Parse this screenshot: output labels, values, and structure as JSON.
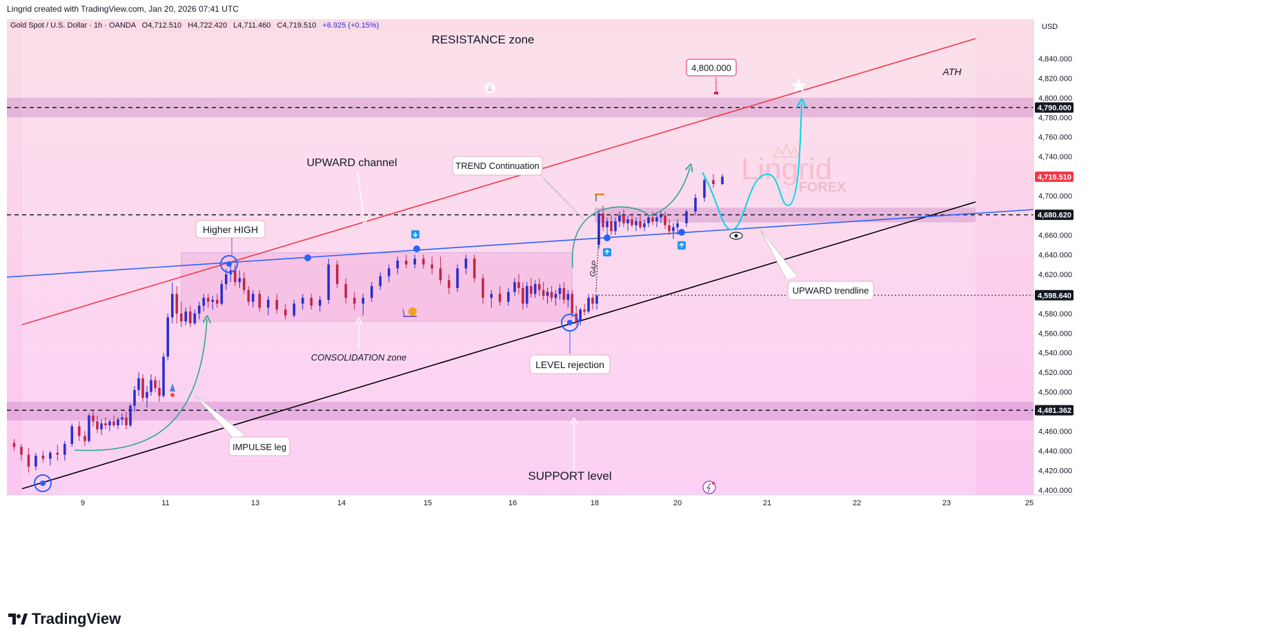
{
  "header": {
    "credit": "Lingrid created with TradingView.com, Jan 20, 2026 07:41 UTC"
  },
  "chart_data": {
    "type": "candlestick",
    "symbol_line": {
      "name": "Gold Spot / U.S. Dollar · 1h · OANDA",
      "open": "O4,712.510",
      "high": "H4,722.420",
      "low": "L4,711.460",
      "close": "C4,719.510",
      "change": "+6.925 (+0.15%)"
    },
    "currency": "USD",
    "y_range": [
      4395,
      4880
    ],
    "y_ticks": [
      "4,840.000",
      "4,820.000",
      "4,800.000",
      "4,780.000",
      "4,760.000",
      "4,740.000",
      "4,720.000",
      "4,700.000",
      "4,680.000",
      "4,660.000",
      "4,640.000",
      "4,620.000",
      "4,600.000",
      "4,580.000",
      "4,560.000",
      "4,540.000",
      "4,520.000",
      "4,500.000",
      "4,480.000",
      "4,460.000",
      "4,440.000",
      "4,420.000",
      "4,400.000"
    ],
    "y_tick_values": [
      4840,
      4820,
      4800,
      4780,
      4760,
      4740,
      4720,
      4700,
      4680,
      4660,
      4640,
      4620,
      4600,
      4580,
      4560,
      4540,
      4520,
      4500,
      4480,
      4460,
      4440,
      4420,
      4400
    ],
    "x_ticks": [
      {
        "label": "9",
        "day": 9
      },
      {
        "label": "11",
        "day": 11
      },
      {
        "label": "13",
        "day": 13
      },
      {
        "label": "14",
        "day": 14
      },
      {
        "label": "15",
        "day": 15
      },
      {
        "label": "16",
        "day": 16
      },
      {
        "label": "18",
        "day": 18
      },
      {
        "label": "20",
        "day": 20
      },
      {
        "label": "21",
        "day": 21
      },
      {
        "label": "22",
        "day": 22
      },
      {
        "label": "23",
        "day": 23
      },
      {
        "label": "25",
        "day": 25
      }
    ],
    "price_tags": [
      {
        "label": "4,790.000",
        "value": 4790,
        "color": "#131722"
      },
      {
        "label": "4,719.510",
        "value": 4719.51,
        "color": "#f23645"
      },
      {
        "label": "4,680.620",
        "value": 4680.62,
        "color": "#131722"
      },
      {
        "label": "4,598.640",
        "value": 4598.64,
        "color": "#131722"
      },
      {
        "label": "4,481.362",
        "value": 4481.362,
        "color": "#131722"
      }
    ],
    "candles": [
      {
        "day": 8.05,
        "o": 4448,
        "h": 4452,
        "l": 4440,
        "c": 4444
      },
      {
        "day": 8.15,
        "o": 4444,
        "h": 4447,
        "l": 4430,
        "c": 4436
      },
      {
        "day": 8.25,
        "o": 4436,
        "h": 4443,
        "l": 4418,
        "c": 4424
      },
      {
        "day": 8.35,
        "o": 4424,
        "h": 4438,
        "l": 4420,
        "c": 4435
      },
      {
        "day": 8.45,
        "o": 4435,
        "h": 4440,
        "l": 4428,
        "c": 4432
      },
      {
        "day": 8.55,
        "o": 4432,
        "h": 4440,
        "l": 4425,
        "c": 4438
      },
      {
        "day": 8.65,
        "o": 4438,
        "h": 4446,
        "l": 4430,
        "c": 4436
      },
      {
        "day": 8.75,
        "o": 4436,
        "h": 4450,
        "l": 4430,
        "c": 4447
      },
      {
        "day": 8.85,
        "o": 4447,
        "h": 4468,
        "l": 4444,
        "c": 4465
      },
      {
        "day": 8.95,
        "o": 4465,
        "h": 4470,
        "l": 4450,
        "c": 4455
      },
      {
        "day": 9.05,
        "o": 4455,
        "h": 4460,
        "l": 4445,
        "c": 4450
      },
      {
        "day": 9.15,
        "o": 4450,
        "h": 4478,
        "l": 4448,
        "c": 4476
      },
      {
        "day": 9.25,
        "o": 4476,
        "h": 4482,
        "l": 4465,
        "c": 4470
      },
      {
        "day": 9.35,
        "o": 4470,
        "h": 4476,
        "l": 4458,
        "c": 4462
      },
      {
        "day": 9.45,
        "o": 4462,
        "h": 4472,
        "l": 4456,
        "c": 4468
      },
      {
        "day": 9.55,
        "o": 4468,
        "h": 4474,
        "l": 4462,
        "c": 4466
      },
      {
        "day": 9.65,
        "o": 4466,
        "h": 4472,
        "l": 4460,
        "c": 4470
      },
      {
        "day": 9.75,
        "o": 4470,
        "h": 4476,
        "l": 4464,
        "c": 4466
      },
      {
        "day": 9.85,
        "o": 4466,
        "h": 4474,
        "l": 4462,
        "c": 4472
      },
      {
        "day": 9.95,
        "o": 4472,
        "h": 4478,
        "l": 4466,
        "c": 4474
      },
      {
        "day": 10.05,
        "o": 4474,
        "h": 4480,
        "l": 4462,
        "c": 4466
      },
      {
        "day": 10.15,
        "o": 4466,
        "h": 4488,
        "l": 4464,
        "c": 4486
      },
      {
        "day": 10.25,
        "o": 4486,
        "h": 4506,
        "l": 4480,
        "c": 4502
      },
      {
        "day": 10.35,
        "o": 4502,
        "h": 4520,
        "l": 4496,
        "c": 4514
      },
      {
        "day": 10.45,
        "o": 4514,
        "h": 4518,
        "l": 4490,
        "c": 4494
      },
      {
        "day": 10.55,
        "o": 4494,
        "h": 4506,
        "l": 4484,
        "c": 4500
      },
      {
        "day": 10.65,
        "o": 4500,
        "h": 4518,
        "l": 4496,
        "c": 4512
      },
      {
        "day": 10.75,
        "o": 4512,
        "h": 4516,
        "l": 4500,
        "c": 4504
      },
      {
        "day": 10.85,
        "o": 4504,
        "h": 4512,
        "l": 4490,
        "c": 4496
      },
      {
        "day": 10.95,
        "o": 4496,
        "h": 4540,
        "l": 4494,
        "c": 4536
      },
      {
        "day": 11.05,
        "o": 4536,
        "h": 4580,
        "l": 4532,
        "c": 4576
      },
      {
        "day": 11.15,
        "o": 4576,
        "h": 4612,
        "l": 4570,
        "c": 4600
      },
      {
        "day": 11.25,
        "o": 4600,
        "h": 4608,
        "l": 4570,
        "c": 4580
      },
      {
        "day": 11.35,
        "o": 4580,
        "h": 4592,
        "l": 4566,
        "c": 4572
      },
      {
        "day": 11.45,
        "o": 4572,
        "h": 4586,
        "l": 4568,
        "c": 4582
      },
      {
        "day": 11.55,
        "o": 4582,
        "h": 4588,
        "l": 4566,
        "c": 4570
      },
      {
        "day": 11.65,
        "o": 4570,
        "h": 4584,
        "l": 4568,
        "c": 4580
      },
      {
        "day": 11.75,
        "o": 4580,
        "h": 4592,
        "l": 4574,
        "c": 4588
      },
      {
        "day": 11.85,
        "o": 4588,
        "h": 4600,
        "l": 4582,
        "c": 4596
      },
      {
        "day": 11.95,
        "o": 4596,
        "h": 4600,
        "l": 4586,
        "c": 4592
      },
      {
        "day": 12.05,
        "o": 4592,
        "h": 4598,
        "l": 4584,
        "c": 4594
      },
      {
        "day": 12.15,
        "o": 4594,
        "h": 4600,
        "l": 4586,
        "c": 4590
      },
      {
        "day": 12.25,
        "o": 4590,
        "h": 4614,
        "l": 4588,
        "c": 4610
      },
      {
        "day": 12.35,
        "o": 4610,
        "h": 4626,
        "l": 4604,
        "c": 4620
      },
      {
        "day": 12.45,
        "o": 4620,
        "h": 4630,
        "l": 4612,
        "c": 4624
      },
      {
        "day": 12.55,
        "o": 4624,
        "h": 4630,
        "l": 4608,
        "c": 4612
      },
      {
        "day": 12.65,
        "o": 4612,
        "h": 4624,
        "l": 4606,
        "c": 4616
      },
      {
        "day": 12.75,
        "o": 4616,
        "h": 4622,
        "l": 4600,
        "c": 4604
      },
      {
        "day": 12.85,
        "o": 4604,
        "h": 4608,
        "l": 4588,
        "c": 4592
      },
      {
        "day": 12.95,
        "o": 4592,
        "h": 4604,
        "l": 4586,
        "c": 4600
      },
      {
        "day": 13.05,
        "o": 4600,
        "h": 4604,
        "l": 4582,
        "c": 4586
      },
      {
        "day": 13.15,
        "o": 4586,
        "h": 4598,
        "l": 4578,
        "c": 4594
      },
      {
        "day": 13.25,
        "o": 4594,
        "h": 4600,
        "l": 4580,
        "c": 4584
      },
      {
        "day": 13.35,
        "o": 4584,
        "h": 4590,
        "l": 4574,
        "c": 4578
      },
      {
        "day": 13.45,
        "o": 4578,
        "h": 4594,
        "l": 4576,
        "c": 4590
      },
      {
        "day": 13.55,
        "o": 4590,
        "h": 4600,
        "l": 4584,
        "c": 4596
      },
      {
        "day": 13.65,
        "o": 4596,
        "h": 4600,
        "l": 4584,
        "c": 4588
      },
      {
        "day": 13.75,
        "o": 4588,
        "h": 4598,
        "l": 4582,
        "c": 4594
      },
      {
        "day": 13.85,
        "o": 4594,
        "h": 4636,
        "l": 4590,
        "c": 4630
      },
      {
        "day": 13.95,
        "o": 4630,
        "h": 4634,
        "l": 4606,
        "c": 4610
      },
      {
        "day": 14.05,
        "o": 4610,
        "h": 4616,
        "l": 4590,
        "c": 4596
      },
      {
        "day": 14.15,
        "o": 4596,
        "h": 4602,
        "l": 4584,
        "c": 4590
      },
      {
        "day": 14.25,
        "o": 4590,
        "h": 4600,
        "l": 4578,
        "c": 4596
      },
      {
        "day": 14.35,
        "o": 4596,
        "h": 4612,
        "l": 4592,
        "c": 4608
      },
      {
        "day": 14.45,
        "o": 4608,
        "h": 4622,
        "l": 4604,
        "c": 4618
      },
      {
        "day": 14.55,
        "o": 4618,
        "h": 4630,
        "l": 4612,
        "c": 4626
      },
      {
        "day": 14.65,
        "o": 4626,
        "h": 4638,
        "l": 4620,
        "c": 4634
      },
      {
        "day": 14.75,
        "o": 4634,
        "h": 4640,
        "l": 4626,
        "c": 4630
      },
      {
        "day": 14.85,
        "o": 4630,
        "h": 4640,
        "l": 4626,
        "c": 4636
      },
      {
        "day": 14.95,
        "o": 4636,
        "h": 4640,
        "l": 4626,
        "c": 4630
      },
      {
        "day": 15.05,
        "o": 4630,
        "h": 4638,
        "l": 4620,
        "c": 4626
      },
      {
        "day": 15.15,
        "o": 4626,
        "h": 4638,
        "l": 4610,
        "c": 4614
      },
      {
        "day": 15.25,
        "o": 4614,
        "h": 4620,
        "l": 4600,
        "c": 4606
      },
      {
        "day": 15.35,
        "o": 4606,
        "h": 4630,
        "l": 4602,
        "c": 4626
      },
      {
        "day": 15.45,
        "o": 4626,
        "h": 4640,
        "l": 4620,
        "c": 4636
      },
      {
        "day": 15.55,
        "o": 4636,
        "h": 4640,
        "l": 4612,
        "c": 4616
      },
      {
        "day": 15.65,
        "o": 4616,
        "h": 4620,
        "l": 4590,
        "c": 4596
      },
      {
        "day": 15.75,
        "o": 4596,
        "h": 4604,
        "l": 4586,
        "c": 4600
      },
      {
        "day": 15.85,
        "o": 4600,
        "h": 4608,
        "l": 4588,
        "c": 4592
      },
      {
        "day": 15.95,
        "o": 4592,
        "h": 4606,
        "l": 4588,
        "c": 4602
      },
      {
        "day": 16.05,
        "o": 4602,
        "h": 4616,
        "l": 4598,
        "c": 4612
      },
      {
        "day": 16.15,
        "o": 4612,
        "h": 4620,
        "l": 4600,
        "c": 4606
      },
      {
        "day": 16.25,
        "o": 4606,
        "h": 4612,
        "l": 4584,
        "c": 4590
      },
      {
        "day": 16.35,
        "o": 4590,
        "h": 4612,
        "l": 4586,
        "c": 4608
      },
      {
        "day": 16.45,
        "o": 4608,
        "h": 4616,
        "l": 4596,
        "c": 4600
      },
      {
        "day": 16.55,
        "o": 4600,
        "h": 4614,
        "l": 4596,
        "c": 4610
      },
      {
        "day": 16.65,
        "o": 4610,
        "h": 4616,
        "l": 4598,
        "c": 4604
      },
      {
        "day": 16.75,
        "o": 4604,
        "h": 4612,
        "l": 4594,
        "c": 4598
      },
      {
        "day": 16.85,
        "o": 4598,
        "h": 4606,
        "l": 4590,
        "c": 4602
      },
      {
        "day": 16.95,
        "o": 4602,
        "h": 4608,
        "l": 4592,
        "c": 4596
      },
      {
        "day": 17.05,
        "o": 4596,
        "h": 4604,
        "l": 4588,
        "c": 4600
      },
      {
        "day": 17.15,
        "o": 4600,
        "h": 4610,
        "l": 4594,
        "c": 4606
      },
      {
        "day": 17.25,
        "o": 4606,
        "h": 4612,
        "l": 4590,
        "c": 4594
      },
      {
        "day": 17.35,
        "o": 4594,
        "h": 4604,
        "l": 4586,
        "c": 4600
      },
      {
        "day": 17.45,
        "o": 4600,
        "h": 4604,
        "l": 4576,
        "c": 4580
      },
      {
        "day": 17.55,
        "o": 4580,
        "h": 4588,
        "l": 4568,
        "c": 4572
      },
      {
        "day": 17.65,
        "o": 4572,
        "h": 4586,
        "l": 4568,
        "c": 4584
      },
      {
        "day": 17.75,
        "o": 4584,
        "h": 4590,
        "l": 4578,
        "c": 4582
      },
      {
        "day": 17.85,
        "o": 4582,
        "h": 4600,
        "l": 4580,
        "c": 4596
      },
      {
        "day": 17.95,
        "o": 4596,
        "h": 4600,
        "l": 4584,
        "c": 4590
      },
      {
        "day": 18.05,
        "o": 4590,
        "h": 4600,
        "l": 4584,
        "c": 4598
      },
      {
        "day": 18.1,
        "o": 4650,
        "h": 4686,
        "l": 4646,
        "c": 4682
      },
      {
        "day": 18.2,
        "o": 4682,
        "h": 4690,
        "l": 4664,
        "c": 4668
      },
      {
        "day": 18.3,
        "o": 4668,
        "h": 4678,
        "l": 4656,
        "c": 4674
      },
      {
        "day": 18.4,
        "o": 4674,
        "h": 4680,
        "l": 4660,
        "c": 4664
      },
      {
        "day": 18.5,
        "o": 4664,
        "h": 4678,
        "l": 4660,
        "c": 4674
      },
      {
        "day": 18.6,
        "o": 4674,
        "h": 4684,
        "l": 4668,
        "c": 4680
      },
      {
        "day": 18.7,
        "o": 4680,
        "h": 4686,
        "l": 4668,
        "c": 4672
      },
      {
        "day": 18.8,
        "o": 4672,
        "h": 4680,
        "l": 4664,
        "c": 4676
      },
      {
        "day": 18.9,
        "o": 4676,
        "h": 4682,
        "l": 4668,
        "c": 4670
      },
      {
        "day": 19.0,
        "o": 4670,
        "h": 4678,
        "l": 4664,
        "c": 4674
      },
      {
        "day": 19.1,
        "o": 4674,
        "h": 4680,
        "l": 4666,
        "c": 4668
      },
      {
        "day": 19.2,
        "o": 4668,
        "h": 4676,
        "l": 4664,
        "c": 4672
      },
      {
        "day": 19.3,
        "o": 4672,
        "h": 4680,
        "l": 4668,
        "c": 4678
      },
      {
        "day": 19.4,
        "o": 4678,
        "h": 4684,
        "l": 4670,
        "c": 4674
      },
      {
        "day": 19.5,
        "o": 4674,
        "h": 4682,
        "l": 4668,
        "c": 4678
      },
      {
        "day": 19.6,
        "o": 4678,
        "h": 4684,
        "l": 4672,
        "c": 4680
      },
      {
        "day": 19.7,
        "o": 4680,
        "h": 4684,
        "l": 4666,
        "c": 4670
      },
      {
        "day": 19.8,
        "o": 4670,
        "h": 4676,
        "l": 4660,
        "c": 4664
      },
      {
        "day": 19.9,
        "o": 4664,
        "h": 4672,
        "l": 4656,
        "c": 4668
      },
      {
        "day": 20.0,
        "o": 4668,
        "h": 4676,
        "l": 4660,
        "c": 4672
      },
      {
        "day": 20.1,
        "o": 4672,
        "h": 4686,
        "l": 4668,
        "c": 4684
      },
      {
        "day": 20.2,
        "o": 4684,
        "h": 4702,
        "l": 4680,
        "c": 4698
      },
      {
        "day": 20.3,
        "o": 4698,
        "h": 4718,
        "l": 4694,
        "c": 4716
      },
      {
        "day": 20.4,
        "o": 4716,
        "h": 4722,
        "l": 4708,
        "c": 4712
      },
      {
        "day": 20.5,
        "o": 4712,
        "h": 4722,
        "l": 4711,
        "c": 4719.51
      }
    ],
    "levels": [
      {
        "value": 4790,
        "style": "dashed"
      },
      {
        "value": 4680.62,
        "style": "dashed"
      },
      {
        "value": 4598.64,
        "style": "dotted"
      },
      {
        "value": 4481.362,
        "style": "dashed"
      }
    ],
    "zones": [
      {
        "from": 4780,
        "to": 4800,
        "kind": "resistance"
      },
      {
        "from": 4673,
        "to": 4688,
        "kind": "retest"
      },
      {
        "from": 4471,
        "to": 4490,
        "kind": "support"
      }
    ],
    "annotations": {
      "resistance_zone": "RESISTANCE zone",
      "upward_channel": "UPWARD channel",
      "trend_continuation": "TREND Continuation",
      "higher_high": "Higher HIGH",
      "consolidation_zone": "CONSOLIDATION zone",
      "level_rejection": "LEVEL rejection",
      "impulse_leg": "IMPULSE leg",
      "support_level": "SUPPORT level",
      "upward_trendline": "UPWARD trendline",
      "target_price": "4,800.000",
      "ath": "ATH",
      "gap": "GAP",
      "watermark_main": "Lingrid",
      "watermark_sub": "FOREX"
    },
    "colors": {
      "bull": "#2a2ecd",
      "bear": "#c0264a",
      "channel_upper": "#f23645",
      "channel_lower": "#000000",
      "trendline": "#2962ff",
      "projection": "#00d8e6",
      "impulse_arrow": "#2aa889"
    }
  },
  "footer": {
    "brand": "TradingView"
  }
}
